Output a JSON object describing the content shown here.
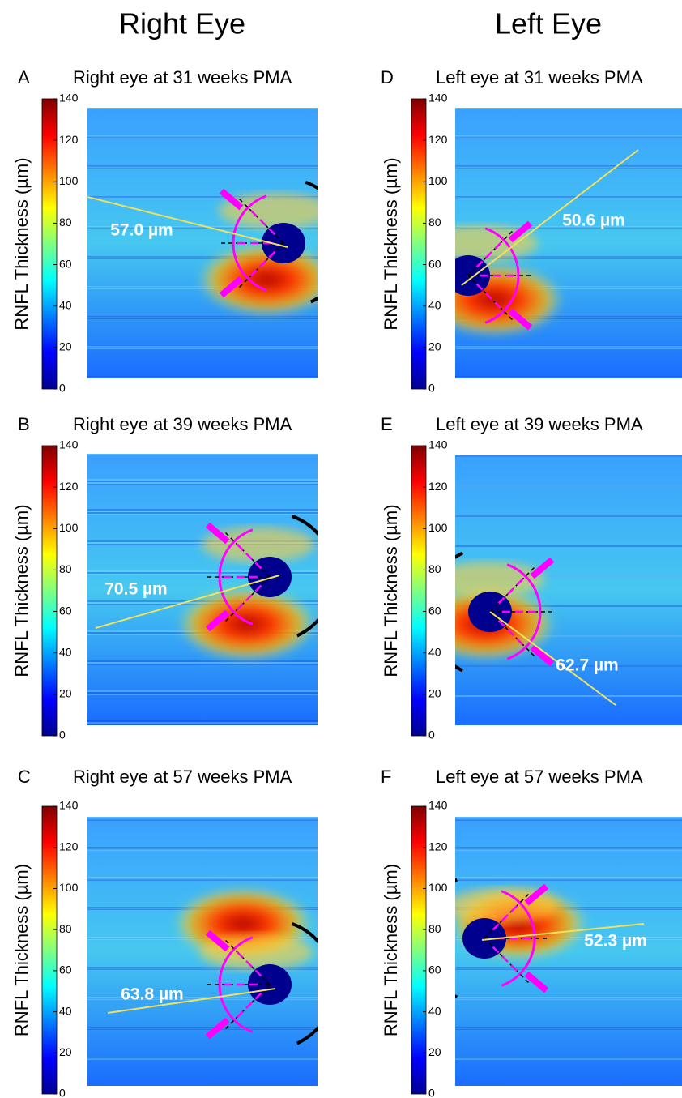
{
  "columns": [
    "Right Eye",
    "Left Eye"
  ],
  "chart_data": [
    {
      "type": "heatmap",
      "panel": "A",
      "title": "Right eye at 31 weeks PMA",
      "colorbar_label": "RNFL Thickness (µm)",
      "clim": [
        0,
        140
      ],
      "cticks": [
        0,
        20,
        40,
        60,
        80,
        100,
        120,
        140
      ],
      "annotation": "57.0 µm"
    },
    {
      "type": "heatmap",
      "panel": "B",
      "title": "Right eye at 39 weeks PMA",
      "colorbar_label": "RNFL Thickness (µm)",
      "clim": [
        0,
        140
      ],
      "cticks": [
        0,
        20,
        40,
        60,
        80,
        100,
        120,
        140
      ],
      "annotation": "70.5 µm"
    },
    {
      "type": "heatmap",
      "panel": "C",
      "title": "Right eye at 57 weeks PMA",
      "colorbar_label": "RNFL Thickness (µm)",
      "clim": [
        0,
        140
      ],
      "cticks": [
        0,
        20,
        40,
        60,
        80,
        100,
        120,
        140
      ],
      "annotation": "63.8 µm"
    },
    {
      "type": "heatmap",
      "panel": "D",
      "title": "Left eye at 31 weeks PMA",
      "colorbar_label": "RNFL Thickness (µm)",
      "clim": [
        0,
        140
      ],
      "cticks": [
        0,
        20,
        40,
        60,
        80,
        100,
        120,
        140
      ],
      "annotation": "50.6 µm"
    },
    {
      "type": "heatmap",
      "panel": "E",
      "title": "Left eye at 39 weeks PMA",
      "colorbar_label": "RNFL Thickness (µm)",
      "clim": [
        0,
        140
      ],
      "cticks": [
        0,
        20,
        40,
        60,
        80,
        100,
        120,
        140
      ],
      "annotation": "62.7 µm"
    },
    {
      "type": "heatmap",
      "panel": "F",
      "title": "Left eye at 57 weeks PMA",
      "colorbar_label": "RNFL Thickness (µm)",
      "clim": [
        0,
        140
      ],
      "cticks": [
        0,
        20,
        40,
        60,
        80,
        100,
        120,
        140
      ],
      "annotation": "52.3 µm"
    }
  ]
}
